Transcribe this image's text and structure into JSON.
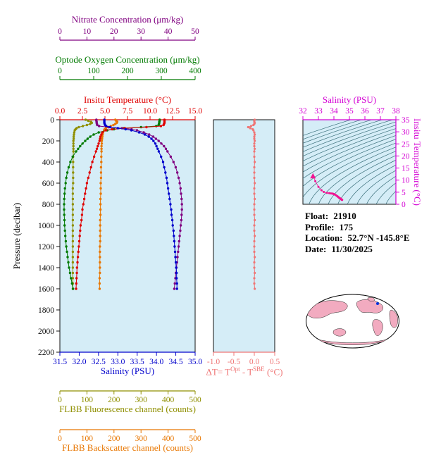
{
  "colors": {
    "panel_bg": "#D5EDF7",
    "contour": "#3A6F7A",
    "spine": "#111111",
    "background": "#FFFFFF"
  },
  "info": {
    "lines": [
      {
        "label": "Float:",
        "value": "21910"
      },
      {
        "label": "Profile:",
        "value": "175"
      },
      {
        "label": "Location:",
        "value": "52.7°N -145.8°E"
      },
      {
        "label": "Date:",
        "value": "11/30/2025"
      }
    ]
  },
  "map": {
    "land_color": "#F2ABC0",
    "marker_color": "#0033DD"
  },
  "chart_data": [
    {
      "type": "line",
      "ylabel": "Pressure (decibar)",
      "ylim": [
        0,
        2200
      ],
      "yticks": [
        0,
        200,
        400,
        600,
        800,
        1000,
        1200,
        1400,
        1600,
        1800,
        2000,
        2200
      ],
      "pressure_db": [
        0,
        10,
        20,
        30,
        40,
        50,
        60,
        70,
        80,
        90,
        100,
        120,
        140,
        160,
        180,
        200,
        225,
        250,
        275,
        300,
        350,
        400,
        450,
        500,
        550,
        600,
        650,
        700,
        750,
        800,
        850,
        900,
        950,
        1000,
        1050,
        1100,
        1150,
        1200,
        1250,
        1300,
        1350,
        1400,
        1450,
        1500,
        1550,
        1600
      ],
      "x_axes": [
        {
          "id": "nitrate",
          "label": "Nitrate Concentration (μm/kg)",
          "color": "#800080",
          "lim": [
            0,
            50
          ],
          "ticks": [
            0,
            10,
            20,
            30,
            40,
            50
          ]
        },
        {
          "id": "oxygen",
          "label": "Optode Oxygen Concentration (μm/kg)",
          "color": "#007A00",
          "lim": [
            0,
            400
          ],
          "ticks": [
            0,
            100,
            200,
            300,
            400
          ]
        },
        {
          "id": "temperature",
          "label": "Insitu Temperature (°C)",
          "color": "#DF0000",
          "lim": [
            0,
            15
          ],
          "ticks": [
            0,
            2.5,
            5,
            7.5,
            10,
            12.5,
            15
          ],
          "tick_labels": [
            "0.0",
            "2.5",
            "5.0",
            "7.5",
            "10.0",
            "12.5",
            "15.0"
          ]
        },
        {
          "id": "salinity",
          "label": "Salinity (PSU)",
          "color": "#0000CC",
          "lim": [
            31.5,
            35
          ],
          "ticks": [
            31.5,
            32,
            32.5,
            33,
            33.5,
            34,
            34.5,
            35
          ],
          "tick_labels": [
            "31.5",
            "32.0",
            "32.5",
            "33.0",
            "33.5",
            "34.0",
            "34.5",
            "35.0"
          ]
        },
        {
          "id": "fluorescence",
          "label": "FLBB Fluorescence channel (counts)",
          "color": "#8F8F00",
          "lim": [
            0,
            500
          ],
          "ticks": [
            0,
            100,
            200,
            300,
            400,
            500
          ]
        },
        {
          "id": "backscatter",
          "label": "FLBB Backscatter channel (counts)",
          "color": "#E87600",
          "lim": [
            0,
            500
          ],
          "ticks": [
            0,
            100,
            200,
            300,
            400,
            500
          ]
        }
      ],
      "series": [
        {
          "name": "fluorescence",
          "axis": "fluorescence",
          "color": "#8F8F00",
          "values": [
            95,
            105,
            115,
            118,
            112,
            100,
            85,
            70,
            62,
            58,
            55,
            53,
            52,
            51,
            51,
            50,
            50,
            50,
            50,
            50,
            49,
            49,
            49,
            49,
            49,
            49,
            48,
            48,
            48,
            48,
            48,
            48,
            48,
            48,
            48,
            48,
            48,
            48,
            48,
            48,
            48,
            48,
            48,
            48,
            48,
            48
          ]
        },
        {
          "name": "backscatter",
          "axis": "backscatter",
          "color": "#E87600",
          "values": [
            205,
            208,
            212,
            210,
            205,
            198,
            188,
            178,
            170,
            166,
            163,
            160,
            158,
            157,
            156,
            155,
            155,
            154,
            154,
            154,
            153,
            153,
            152,
            152,
            152,
            151,
            151,
            151,
            150,
            150,
            150,
            150,
            149,
            149,
            149,
            149,
            149,
            148,
            148,
            148,
            148,
            148,
            148,
            147,
            147,
            147
          ]
        },
        {
          "name": "oxygen",
          "axis": "oxygen",
          "color": "#007A00",
          "values": [
            295,
            295,
            294,
            294,
            293,
            292,
            285,
            240,
            190,
            160,
            140,
            115,
            100,
            90,
            82,
            75,
            67,
            60,
            54,
            48,
            38,
            31,
            26,
            22,
            19,
            17,
            15,
            14,
            13,
            12.5,
            12.5,
            13,
            13.5,
            14,
            15,
            16,
            17.5,
            19,
            21,
            23,
            25,
            27,
            30,
            33,
            36,
            39
          ]
        },
        {
          "name": "nitrate",
          "axis": "nitrate",
          "color": "#800080",
          "values": [
            13.5,
            13.5,
            13.6,
            13.6,
            13.7,
            13.8,
            14.5,
            18,
            23,
            26.5,
            28.5,
            31,
            33,
            34.5,
            35.5,
            36.5,
            37.5,
            38.5,
            39.2,
            39.8,
            41,
            42,
            42.8,
            43.4,
            43.9,
            44.3,
            44.6,
            44.8,
            45,
            45.1,
            45.1,
            45,
            44.9,
            44.7,
            44.5,
            44.3,
            44.1,
            43.9,
            43.7,
            43.5,
            43.3,
            43.1,
            42.9,
            42.7,
            42.5,
            42.3
          ]
        },
        {
          "name": "temperature",
          "axis": "temperature",
          "color": "#DF0000",
          "values": [
            11.6,
            11.6,
            11.6,
            11.6,
            11.55,
            11.5,
            11.2,
            9.6,
            7.2,
            5.8,
            5.1,
            4.7,
            4.6,
            4.5,
            4.45,
            4.4,
            4.3,
            4.2,
            4.1,
            4.0,
            3.8,
            3.6,
            3.45,
            3.3,
            3.15,
            3.0,
            2.9,
            2.8,
            2.7,
            2.6,
            2.5,
            2.45,
            2.4,
            2.3,
            2.25,
            2.2,
            2.15,
            2.1,
            2.05,
            2.0,
            1.95,
            1.9,
            1.88,
            1.85,
            1.82,
            1.8
          ]
        },
        {
          "name": "salinity",
          "axis": "salinity",
          "color": "#0000CC",
          "values": [
            32.65,
            32.65,
            32.65,
            32.65,
            32.66,
            32.67,
            32.7,
            32.8,
            33.0,
            33.2,
            33.35,
            33.55,
            33.7,
            33.8,
            33.87,
            33.92,
            33.97,
            34.0,
            34.03,
            34.06,
            34.12,
            34.17,
            34.2,
            34.23,
            34.26,
            34.28,
            34.3,
            34.32,
            34.34,
            34.36,
            34.38,
            34.39,
            34.41,
            34.42,
            34.44,
            34.45,
            34.46,
            34.47,
            34.48,
            34.49,
            34.5,
            34.51,
            34.52,
            34.52,
            34.53,
            34.53
          ]
        }
      ]
    },
    {
      "type": "scatter",
      "title_parts": {
        "p1": "ΔT= T",
        "sup1": "Opt",
        "p2": " - T",
        "sup2": "SBE",
        "p3": " (°C)"
      },
      "color": "#EF7575",
      "xlim": [
        -1,
        0.5
      ],
      "xticks": [
        -1,
        -0.5,
        0,
        0.5
      ],
      "xtick_labels": [
        "-1.0",
        "-0.5",
        "0.0",
        "0.5"
      ],
      "ylim": [
        0,
        2200
      ],
      "series": [
        {
          "name": "delta-temperature",
          "color": "#EF7575",
          "pressure_db": [
            0,
            10,
            20,
            30,
            40,
            50,
            60,
            70,
            80,
            90,
            100,
            120,
            140,
            160,
            180,
            200,
            225,
            250,
            275,
            300,
            350,
            400,
            450,
            500,
            550,
            600,
            650,
            700,
            750,
            800,
            850,
            900,
            950,
            1000,
            1050,
            1100,
            1150,
            1200,
            1250,
            1300,
            1350,
            1400,
            1450,
            1500,
            1550,
            1600
          ],
          "values": [
            0.01,
            0,
            0,
            0.01,
            0,
            -0.02,
            -0.08,
            -0.15,
            -0.1,
            -0.04,
            -0.02,
            0,
            0.01,
            0,
            0,
            0.01,
            0,
            0,
            0.01,
            0,
            0,
            0.01,
            0,
            0,
            0,
            0.01,
            0,
            0,
            0.01,
            0,
            0,
            0,
            0.01,
            0,
            0,
            0.01,
            0,
            0,
            0,
            0.01,
            0,
            0,
            0.01,
            0,
            0,
            0.01
          ]
        }
      ]
    },
    {
      "type": "scatter",
      "xlabel": "Salinity (PSU)",
      "ylabel": "Insitu Temperature (°C)",
      "color": "#D400D4",
      "dot_color": "#F01493",
      "xlim": [
        32,
        38
      ],
      "xticks": [
        32,
        33,
        34,
        35,
        36,
        37,
        38
      ],
      "ylim": [
        0,
        35
      ],
      "yticks": [
        0,
        5,
        10,
        15,
        20,
        25,
        30,
        35
      ],
      "contours": {
        "levels": [
          20,
          20.5,
          21,
          21.5,
          22,
          22.5,
          23,
          23.5,
          24,
          24.5,
          25,
          25.5,
          26,
          26.5,
          27,
          27.5,
          28,
          28.5,
          29,
          29.5,
          30
        ]
      },
      "series": [
        {
          "name": "temperature-salinity",
          "x_from": "salinity",
          "y_from": "temperature",
          "marker_start": "triangle"
        }
      ]
    }
  ]
}
